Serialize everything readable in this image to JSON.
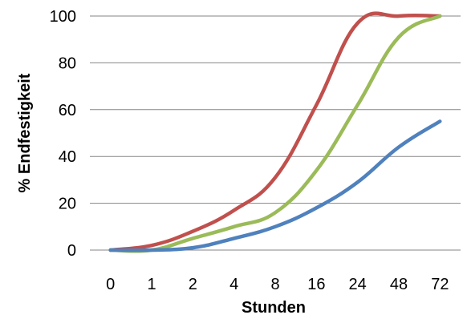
{
  "chart_data": {
    "type": "line",
    "title": "",
    "xlabel": "Stunden",
    "ylabel": "% Endfestigkeit",
    "categories": [
      "0",
      "1",
      "2",
      "4",
      "8",
      "16",
      "24",
      "48",
      "72"
    ],
    "ylim": [
      0,
      100
    ],
    "yticks": [
      "0",
      "20",
      "40",
      "60",
      "80",
      "100"
    ],
    "grid": "horizontal",
    "legend": "none",
    "series": [
      {
        "color": "#c0504d",
        "values": [
          0,
          2,
          8,
          17,
          31,
          62,
          97,
          100,
          100
        ]
      },
      {
        "color": "#9bbb59",
        "values": [
          0,
          0,
          5,
          10,
          16,
          34,
          62,
          91,
          100
        ]
      },
      {
        "color": "#4f81bd",
        "values": [
          0,
          0,
          1,
          5,
          10,
          18,
          29,
          44,
          55
        ]
      }
    ]
  }
}
